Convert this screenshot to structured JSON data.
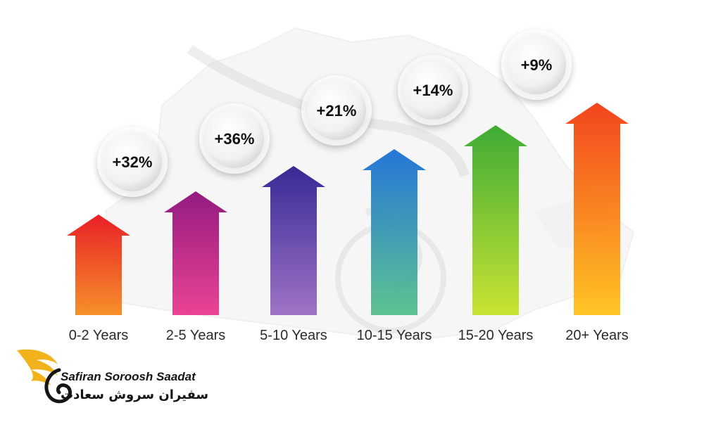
{
  "chart_data": {
    "type": "bar",
    "categories": [
      "0-2 Years",
      "2-5 Years",
      "5-10 Years",
      "10-15 Years",
      "15-20 Years",
      "20+ Years"
    ],
    "values": [
      "+32%",
      "+36%",
      "+21%",
      "+14%",
      "+9%",
      ""
    ],
    "bar_colors_top": [
      "#e8141c",
      "#8e0f7a",
      "#2d1f8f",
      "#1b6fd6",
      "#34a72b",
      "#f23a12"
    ],
    "bar_colors_bottom": [
      "#f58a1f",
      "#ea3a8e",
      "#9a6cc4",
      "#56c08c",
      "#c7e22a",
      "#ffc21a"
    ],
    "background": "Canada map watermark"
  },
  "brand": {
    "name_en": "Safiran Soroosh Saadat",
    "name_fa": "سفیران سروش سعادت",
    "accent_color": "#f2b21c"
  }
}
